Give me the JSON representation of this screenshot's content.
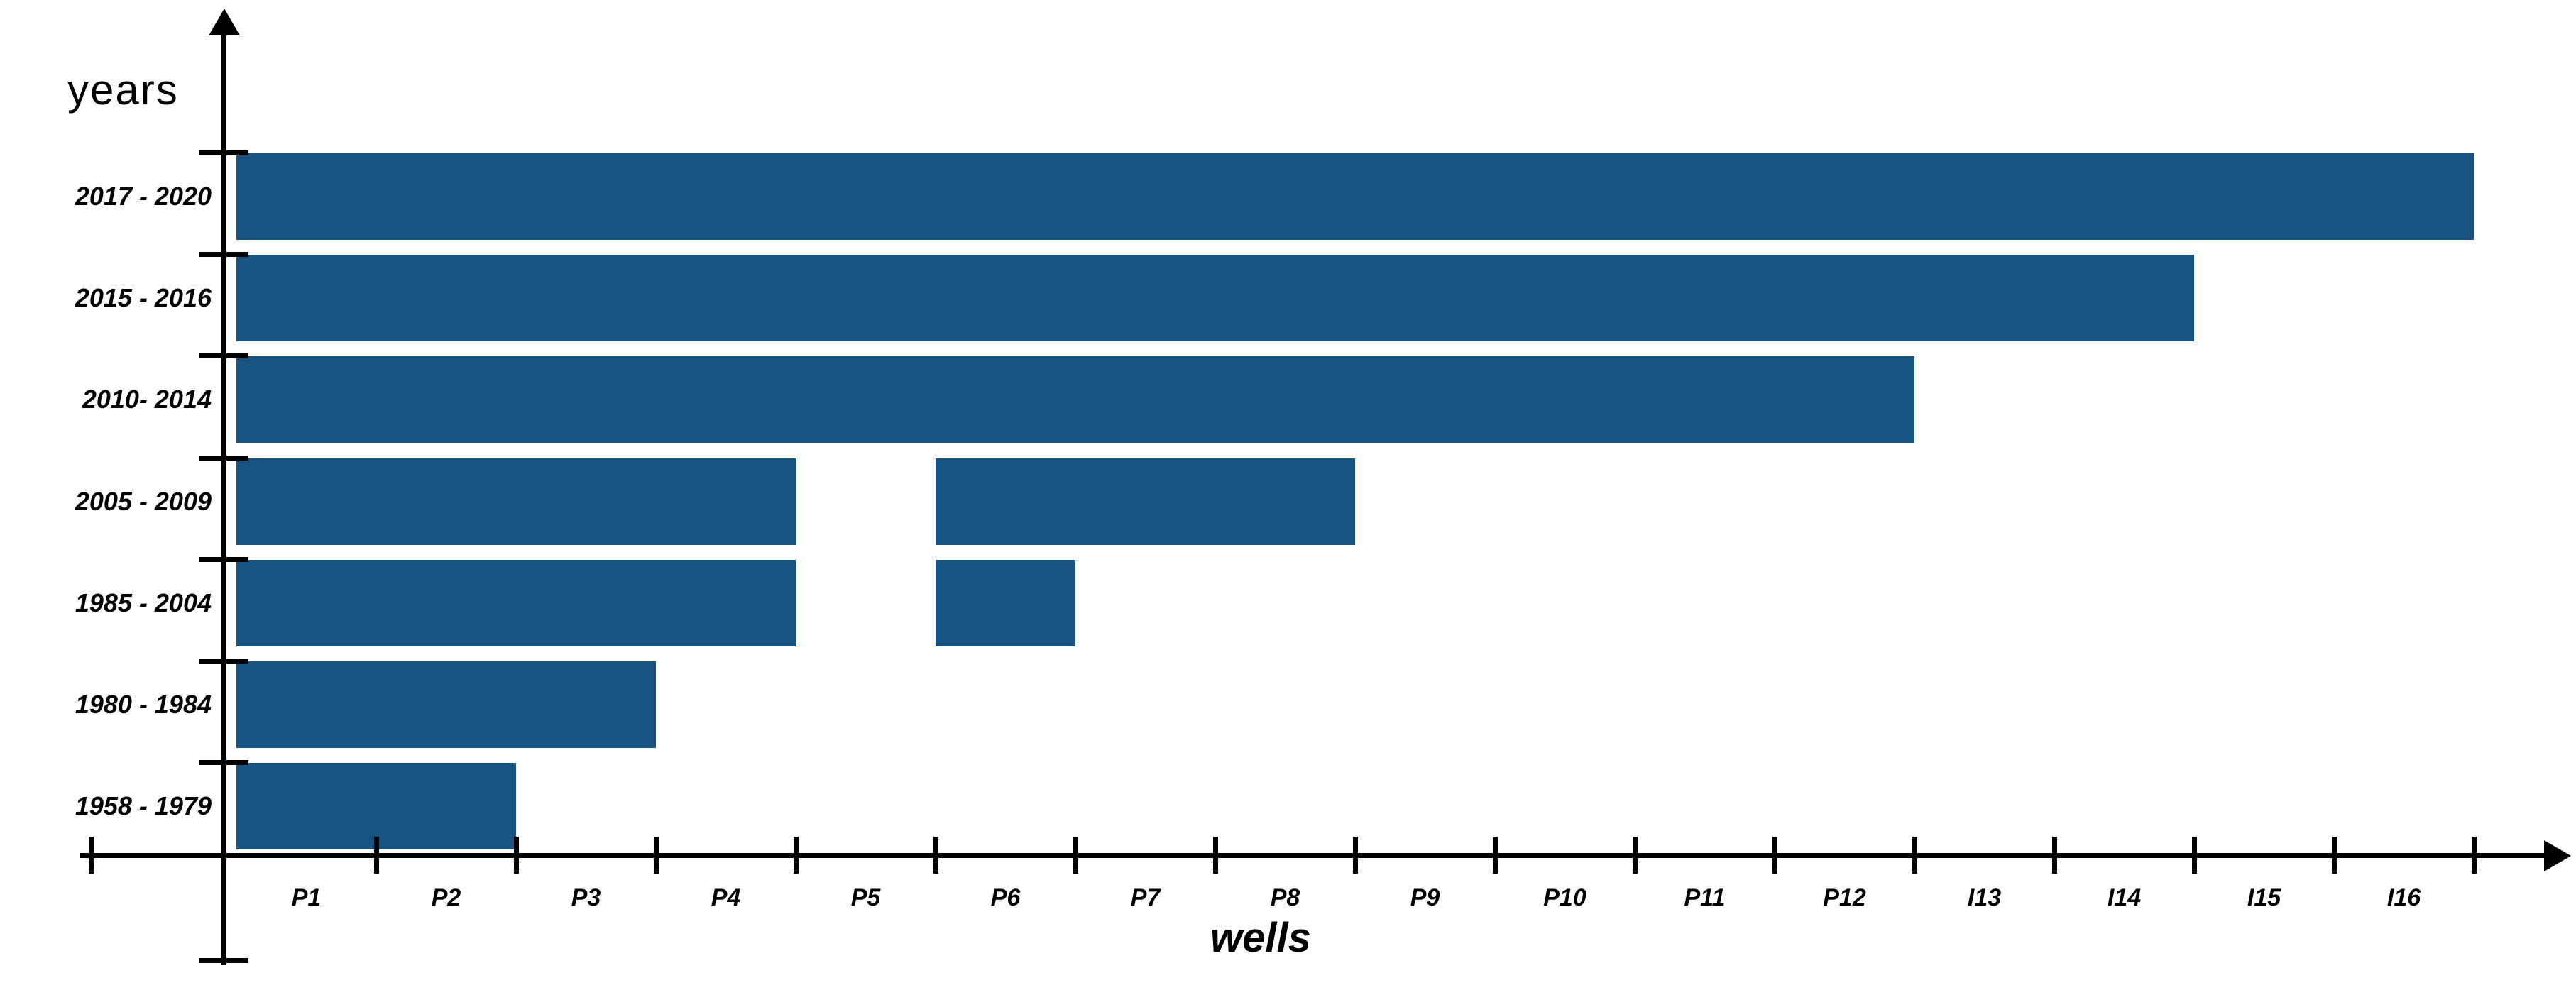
{
  "chart_data": {
    "type": "bar",
    "orientation": "horizontal",
    "title": "",
    "ylabel": "years",
    "xlabel": "wells",
    "bar_color": "#175281",
    "axis_color": "#000000",
    "grid": false,
    "legend": false,
    "xlim": [
      0,
      17
    ],
    "x_tick_labels": [
      "P1",
      "P2",
      "P3",
      "P4",
      "P5",
      "P6",
      "P7",
      "P8",
      "P9",
      "P10",
      "P11",
      "P12",
      "I13",
      "I14",
      "I15",
      "I16"
    ],
    "categories": [
      "2017 - 2020",
      "2015 - 2016",
      "2010- 2014",
      "2005 - 2009",
      "1985 - 2004",
      "1980 - 1984",
      "1958 - 1979"
    ],
    "series": [
      {
        "category": "2017 - 2020",
        "segments": [
          [
            0,
            16
          ]
        ],
        "total_wells": 16,
        "extent": "P1 to I16"
      },
      {
        "category": "2015 - 2016",
        "segments": [
          [
            0,
            14
          ]
        ],
        "total_wells": 14,
        "extent": "P1 to I14"
      },
      {
        "category": "2010- 2014",
        "segments": [
          [
            0,
            12
          ]
        ],
        "total_wells": 12,
        "extent": "P1 to P12"
      },
      {
        "category": "2005 - 2009",
        "segments": [
          [
            0,
            4
          ],
          [
            5,
            8
          ]
        ],
        "total_wells": 7,
        "extent": "P1 to P4 and P6 to P8"
      },
      {
        "category": "1985 - 2004",
        "segments": [
          [
            0,
            4
          ],
          [
            5,
            6
          ]
        ],
        "total_wells": 5,
        "extent": "P1 to P4 and P6"
      },
      {
        "category": "1980 - 1984",
        "segments": [
          [
            0,
            3
          ]
        ],
        "total_wells": 3,
        "extent": "P1 to P3"
      },
      {
        "category": "1958 - 1979",
        "segments": [
          [
            0,
            2
          ]
        ],
        "total_wells": 2,
        "extent": "P1 to P2"
      }
    ]
  }
}
